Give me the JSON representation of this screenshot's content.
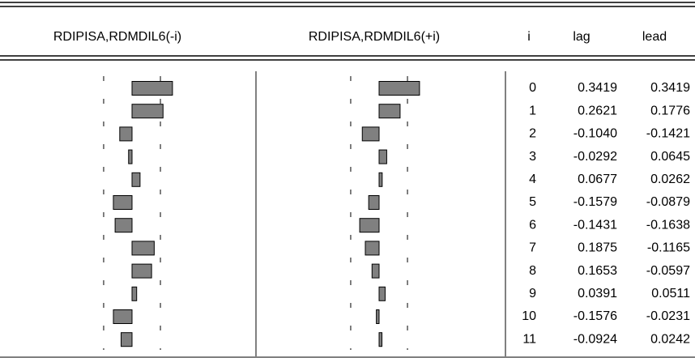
{
  "chart_data": {
    "type": "correlogram",
    "headers": [
      "RDIPISA,RDMDIL6(-i)",
      "RDIPISA,RDMDIL6(+i)",
      "i",
      "lag",
      "lead"
    ],
    "i": [
      0,
      1,
      2,
      3,
      4,
      5,
      6,
      7,
      8,
      9,
      10,
      11
    ],
    "lag": [
      0.3419,
      0.2621,
      -0.104,
      -0.0292,
      0.0677,
      -0.1579,
      -0.1431,
      0.1875,
      0.1653,
      0.0391,
      -0.1576,
      -0.0924
    ],
    "lag_labels": [
      "0.3419",
      "0.2621",
      "-0.1040",
      "-0.0292",
      "0.0677",
      "-0.1579",
      "-0.1431",
      "0.1875",
      "0.1653",
      "0.0391",
      "-0.1576",
      "-0.0924"
    ],
    "lead": [
      0.3419,
      0.1776,
      -0.1421,
      0.0645,
      0.0262,
      -0.0879,
      -0.1638,
      -0.1165,
      -0.0597,
      0.0511,
      -0.0231,
      0.0242
    ],
    "lead_labels": [
      "0.3419",
      "0.1776",
      "-0.1421",
      "0.0645",
      "0.0262",
      "-0.0879",
      "-0.1638",
      "-0.1165",
      "-0.0597",
      "0.0511",
      "-0.0231",
      "0.0242"
    ],
    "confidence_bound": 0.24,
    "bar_color": "#808080"
  }
}
